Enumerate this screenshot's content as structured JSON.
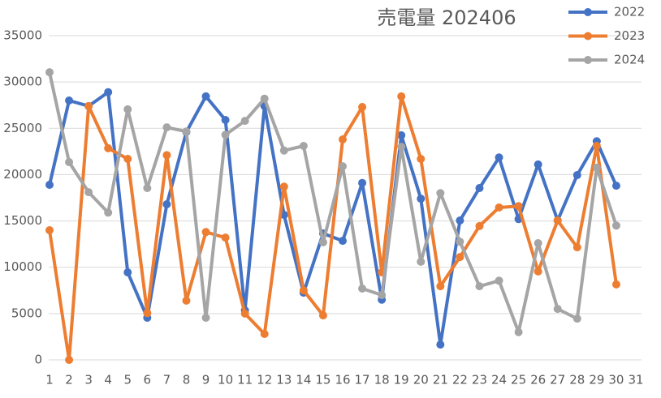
{
  "chart_data": {
    "type": "line",
    "title": "売電量 202406",
    "categories": [
      "1",
      "2",
      "3",
      "4",
      "5",
      "6",
      "7",
      "8",
      "9",
      "10",
      "11",
      "12",
      "13",
      "14",
      "15",
      "16",
      "17",
      "18",
      "19",
      "20",
      "21",
      "22",
      "23",
      "24",
      "25",
      "26",
      "27",
      "28",
      "29",
      "30",
      "31"
    ],
    "series": [
      {
        "name": "2022",
        "color": "#4472c4",
        "values": [
          18900,
          28000,
          27400,
          28900,
          9450,
          4550,
          16800,
          24600,
          28450,
          25900,
          5350,
          27400,
          15650,
          7250,
          13650,
          12850,
          19100,
          6500,
          24250,
          17400,
          1650,
          15050,
          18550,
          21850,
          15200,
          21100,
          15050,
          19950,
          23600,
          18800,
          null
        ]
      },
      {
        "name": "2023",
        "color": "#ed7d31",
        "values": [
          14000,
          0,
          27400,
          22850,
          21700,
          5050,
          22100,
          6400,
          13800,
          13200,
          5000,
          2800,
          18700,
          7500,
          4800,
          23800,
          27300,
          9450,
          28450,
          21700,
          7950,
          11100,
          14450,
          16450,
          16600,
          9550,
          15050,
          12150,
          23100,
          8150,
          null
        ]
      },
      {
        "name": "2024",
        "color": "#a5a5a5",
        "values": [
          31050,
          21350,
          18100,
          15900,
          27050,
          18550,
          25100,
          24650,
          4550,
          24300,
          25800,
          28200,
          22600,
          23100,
          12700,
          20900,
          7700,
          7000,
          23000,
          10600,
          18000,
          12750,
          7950,
          8550,
          3000,
          12600,
          5500,
          4450,
          20750,
          14500,
          null
        ]
      }
    ],
    "ylim": [
      0,
      35000
    ],
    "yticks": [
      0,
      5000,
      10000,
      15000,
      20000,
      25000,
      30000,
      35000
    ],
    "grid": true,
    "legend": "top-right"
  }
}
